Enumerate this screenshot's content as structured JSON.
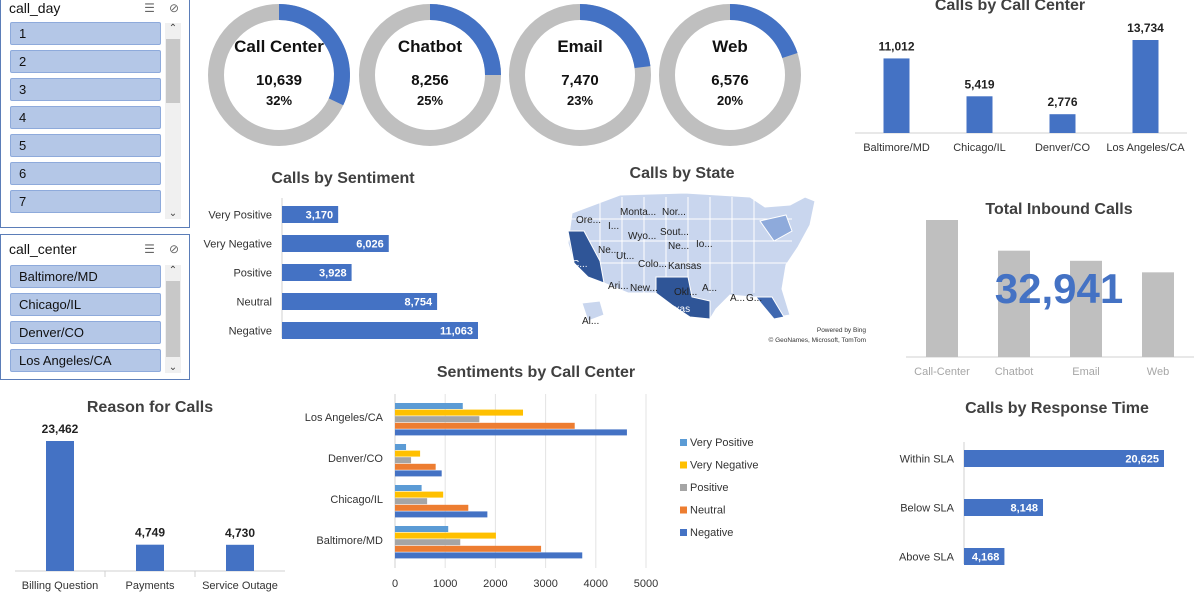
{
  "colors": {
    "blue": "#4472c4",
    "grey": "#bfbfbf",
    "orange": "#ed7d31",
    "yellow": "#ffc000",
    "lightblue": "#5b9bd5",
    "midgrey": "#a5a5a5"
  },
  "slicer_day": {
    "title": "call_day",
    "items": [
      "1",
      "2",
      "3",
      "4",
      "5",
      "6",
      "7"
    ]
  },
  "slicer_center": {
    "title": "call_center",
    "items": [
      "Baltimore/MD",
      "Chicago/IL",
      "Denver/CO",
      "Los Angeles/CA"
    ]
  },
  "donuts": [
    {
      "label": "Call Center",
      "value": "10,639",
      "pct_text": "32%",
      "pct": 0.32
    },
    {
      "label": "Chatbot",
      "value": "8,256",
      "pct_text": "25%",
      "pct": 0.25
    },
    {
      "label": "Email",
      "value": "7,470",
      "pct_text": "23%",
      "pct": 0.23
    },
    {
      "label": "Web",
      "value": "6,576",
      "pct_text": "20%",
      "pct": 0.2
    }
  ],
  "chart_data": [
    {
      "id": "calls_by_call_center",
      "type": "bar",
      "title": "Calls by Call Center",
      "categories": [
        "Baltimore/MD",
        "Chicago/IL",
        "Denver/CO",
        "Los Angeles/CA"
      ],
      "values": [
        11012,
        5419,
        2776,
        13734
      ],
      "value_labels": [
        "11,012",
        "5,419",
        "2,776",
        "13,734"
      ]
    },
    {
      "id": "calls_by_sentiment",
      "type": "bar",
      "orientation": "horizontal",
      "title": "Calls by Sentiment",
      "categories": [
        "Very Positive",
        "Very Negative",
        "Positive",
        "Neutral",
        "Negative"
      ],
      "values": [
        3170,
        6026,
        3928,
        8754,
        11063
      ],
      "value_labels": [
        "3,170",
        "6,026",
        "3,928",
        "8,754",
        "11,063"
      ]
    },
    {
      "id": "total_inbound",
      "type": "bar",
      "title": "Total Inbound Calls",
      "categories": [
        "Call-Center",
        "Chatbot",
        "Email",
        "Web"
      ],
      "values": [
        10639,
        8256,
        7470,
        6576
      ],
      "total_label": "32,941"
    },
    {
      "id": "reason_for_calls",
      "type": "bar",
      "title": "Reason for Calls",
      "categories": [
        "Billing Question",
        "Payments",
        "Service Outage"
      ],
      "values": [
        23462,
        4749,
        4730
      ],
      "value_labels": [
        "23,462",
        "4,749",
        "4,730"
      ]
    },
    {
      "id": "sentiments_by_call_center",
      "type": "bar",
      "orientation": "horizontal",
      "title": "Sentiments by Call Center",
      "categories": [
        "Los Angeles/CA",
        "Denver/CO",
        "Chicago/IL",
        "Baltimore/MD"
      ],
      "series": [
        {
          "name": "Very Positive",
          "values": [
            1350,
            220,
            530,
            1060
          ]
        },
        {
          "name": "Very Negative",
          "values": [
            2550,
            500,
            960,
            2010
          ]
        },
        {
          "name": "Positive",
          "values": [
            1680,
            320,
            640,
            1300
          ]
        },
        {
          "name": "Neutral",
          "values": [
            3580,
            810,
            1460,
            2910
          ]
        },
        {
          "name": "Negative",
          "values": [
            4620,
            930,
            1840,
            3730
          ]
        }
      ],
      "xlim": [
        0,
        5000
      ],
      "xticks": [
        "0",
        "1000",
        "2000",
        "3000",
        "4000",
        "5000"
      ]
    },
    {
      "id": "calls_by_response_time",
      "type": "bar",
      "orientation": "horizontal",
      "title": "Calls by Response Time",
      "categories": [
        "Within SLA",
        "Below SLA",
        "Above SLA"
      ],
      "values": [
        20625,
        8148,
        4168
      ],
      "value_labels": [
        "20,625",
        "8,148",
        "4,168"
      ]
    }
  ],
  "map": {
    "title": "Calls by State",
    "credit1": "Powered by Bing",
    "credit2": "© GeoNames, Microsoft, TomTom",
    "labels": [
      "Ore...",
      "Monta...",
      "Nor...",
      "I...",
      "Wyo...",
      "Sout...",
      "C...",
      "Ne...",
      "Ut...",
      "Colo...",
      "Ne...",
      "Io...",
      "Kansas",
      "Ari...",
      "New...",
      "Okl...",
      "A...",
      "Texas",
      "A...",
      "G...",
      "Al..."
    ]
  }
}
